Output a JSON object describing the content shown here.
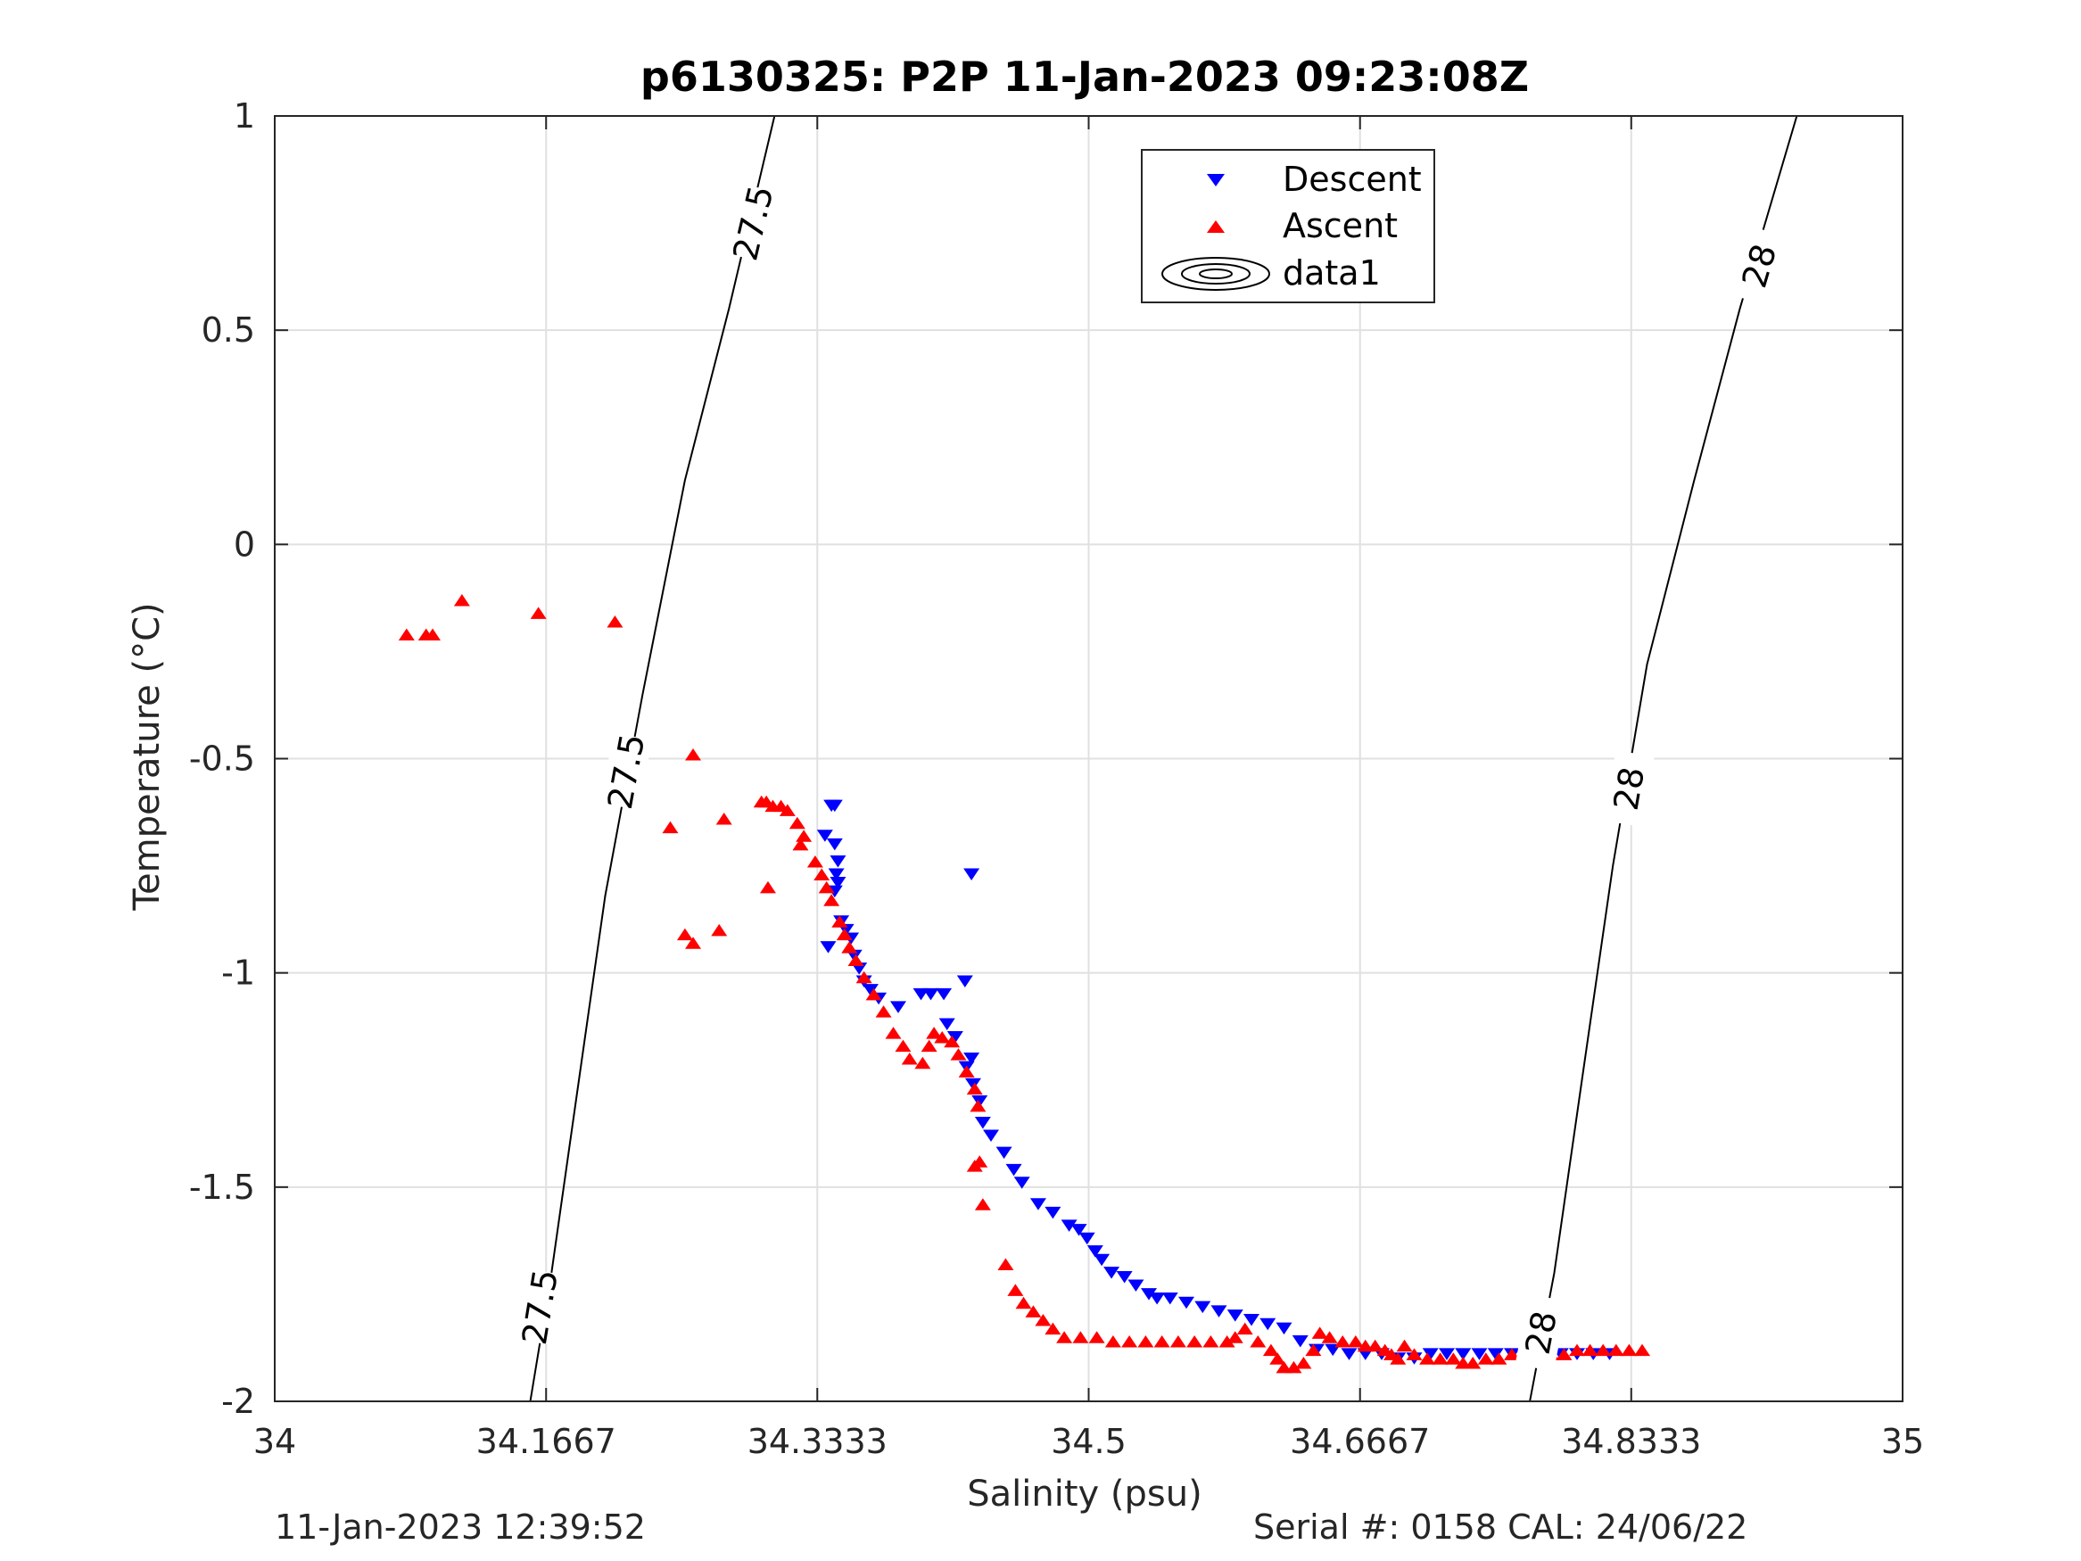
{
  "footer": {
    "timestamp": "11-Jan-2023 12:39:52",
    "serial_cal": "Serial #: 0158  CAL: 24/06/22"
  },
  "chart_data": {
    "type": "scatter",
    "title": "p6130325: P2P 11-Jan-2023 09:23:08Z",
    "xlabel": "Salinity (psu)",
    "ylabel": "Temperature (°C)",
    "xlim": [
      34,
      35
    ],
    "ylim": [
      -2,
      1
    ],
    "xticks": [
      34,
      34.1667,
      34.3333,
      34.5,
      34.6667,
      34.8333,
      35
    ],
    "xtick_labels": [
      "34",
      "34.1667",
      "34.3333",
      "34.5",
      "34.6667",
      "34.8333",
      "35"
    ],
    "yticks": [
      1,
      0.5,
      0,
      -0.5,
      -1,
      -1.5,
      -2
    ],
    "ytick_labels": [
      "1",
      "0.5",
      "0",
      "-0.5",
      "-1",
      "-1.5",
      "-2"
    ],
    "grid": true,
    "legend_position": "top-center",
    "series": [
      {
        "name": "Descent",
        "marker": "triangle-down",
        "color": "#0000ff",
        "points": [
          [
            34.342,
            -0.61
          ],
          [
            34.344,
            -0.61
          ],
          [
            34.338,
            -0.68
          ],
          [
            34.344,
            -0.7
          ],
          [
            34.346,
            -0.74
          ],
          [
            34.345,
            -0.77
          ],
          [
            34.346,
            -0.79
          ],
          [
            34.344,
            -0.81
          ],
          [
            34.348,
            -0.88
          ],
          [
            34.351,
            -0.9
          ],
          [
            34.354,
            -0.92
          ],
          [
            34.34,
            -0.94
          ],
          [
            34.356,
            -0.96
          ],
          [
            34.359,
            -0.99
          ],
          [
            34.362,
            -1.02
          ],
          [
            34.366,
            -1.04
          ],
          [
            34.371,
            -1.06
          ],
          [
            34.383,
            -1.08
          ],
          [
            34.397,
            -1.05
          ],
          [
            34.403,
            -1.05
          ],
          [
            34.411,
            -1.05
          ],
          [
            34.424,
            -1.02
          ],
          [
            34.428,
            -0.77
          ],
          [
            34.413,
            -1.12
          ],
          [
            34.418,
            -1.15
          ],
          [
            34.428,
            -1.2
          ],
          [
            34.425,
            -1.22
          ],
          [
            34.429,
            -1.26
          ],
          [
            34.433,
            -1.3
          ],
          [
            34.435,
            -1.35
          ],
          [
            34.44,
            -1.38
          ],
          [
            34.448,
            -1.42
          ],
          [
            34.454,
            -1.46
          ],
          [
            34.459,
            -1.49
          ],
          [
            34.469,
            -1.54
          ],
          [
            34.478,
            -1.56
          ],
          [
            34.488,
            -1.59
          ],
          [
            34.494,
            -1.6
          ],
          [
            34.499,
            -1.62
          ],
          [
            34.504,
            -1.65
          ],
          [
            34.508,
            -1.67
          ],
          [
            34.514,
            -1.7
          ],
          [
            34.522,
            -1.71
          ],
          [
            34.529,
            -1.73
          ],
          [
            34.537,
            -1.75
          ],
          [
            34.542,
            -1.76
          ],
          [
            34.55,
            -1.76
          ],
          [
            34.56,
            -1.77
          ],
          [
            34.57,
            -1.78
          ],
          [
            34.58,
            -1.79
          ],
          [
            34.59,
            -1.8
          ],
          [
            34.6,
            -1.81
          ],
          [
            34.61,
            -1.82
          ],
          [
            34.62,
            -1.83
          ],
          [
            34.63,
            -1.86
          ],
          [
            34.64,
            -1.88
          ],
          [
            34.65,
            -1.88
          ],
          [
            34.66,
            -1.89
          ],
          [
            34.67,
            -1.89
          ],
          [
            34.68,
            -1.89
          ],
          [
            34.69,
            -1.9
          ],
          [
            34.7,
            -1.9
          ],
          [
            34.71,
            -1.89
          ],
          [
            34.72,
            -1.89
          ],
          [
            34.73,
            -1.89
          ],
          [
            34.74,
            -1.89
          ],
          [
            34.75,
            -1.89
          ],
          [
            34.76,
            -1.89
          ],
          [
            34.77,
            -1.89
          ],
          [
            34.78,
            -1.89
          ],
          [
            34.79,
            -1.89
          ],
          [
            34.8,
            -1.89
          ],
          [
            34.81,
            -1.89
          ],
          [
            34.82,
            -1.89
          ]
        ]
      },
      {
        "name": "Ascent",
        "marker": "triangle-up",
        "color": "#ff0000",
        "points": [
          [
            34.081,
            -0.21
          ],
          [
            34.093,
            -0.21
          ],
          [
            34.097,
            -0.21
          ],
          [
            34.115,
            -0.13
          ],
          [
            34.162,
            -0.16
          ],
          [
            34.209,
            -0.18
          ],
          [
            34.257,
            -0.49
          ],
          [
            34.243,
            -0.66
          ],
          [
            34.276,
            -0.64
          ],
          [
            34.252,
            -0.91
          ],
          [
            34.257,
            -0.93
          ],
          [
            34.273,
            -0.9
          ],
          [
            34.303,
            -0.8
          ],
          [
            34.299,
            -0.6
          ],
          [
            34.302,
            -0.6
          ],
          [
            34.306,
            -0.61
          ],
          [
            34.311,
            -0.61
          ],
          [
            34.315,
            -0.62
          ],
          [
            34.321,
            -0.65
          ],
          [
            34.325,
            -0.68
          ],
          [
            34.323,
            -0.7
          ],
          [
            34.332,
            -0.74
          ],
          [
            34.336,
            -0.77
          ],
          [
            34.339,
            -0.8
          ],
          [
            34.342,
            -0.83
          ],
          [
            34.347,
            -0.88
          ],
          [
            34.35,
            -0.91
          ],
          [
            34.353,
            -0.94
          ],
          [
            34.357,
            -0.97
          ],
          [
            34.362,
            -1.01
          ],
          [
            34.368,
            -1.05
          ],
          [
            34.374,
            -1.09
          ],
          [
            34.38,
            -1.14
          ],
          [
            34.386,
            -1.17
          ],
          [
            34.39,
            -1.2
          ],
          [
            34.398,
            -1.21
          ],
          [
            34.402,
            -1.17
          ],
          [
            34.405,
            -1.14
          ],
          [
            34.41,
            -1.15
          ],
          [
            34.416,
            -1.16
          ],
          [
            34.42,
            -1.19
          ],
          [
            34.425,
            -1.23
          ],
          [
            34.43,
            -1.27
          ],
          [
            34.432,
            -1.31
          ],
          [
            34.43,
            -1.45
          ],
          [
            34.433,
            -1.44
          ],
          [
            34.435,
            -1.54
          ],
          [
            34.449,
            -1.68
          ],
          [
            34.455,
            -1.74
          ],
          [
            34.46,
            -1.77
          ],
          [
            34.466,
            -1.79
          ],
          [
            34.472,
            -1.81
          ],
          [
            34.478,
            -1.83
          ],
          [
            34.485,
            -1.85
          ],
          [
            34.495,
            -1.85
          ],
          [
            34.505,
            -1.85
          ],
          [
            34.515,
            -1.86
          ],
          [
            34.525,
            -1.86
          ],
          [
            34.535,
            -1.86
          ],
          [
            34.545,
            -1.86
          ],
          [
            34.555,
            -1.86
          ],
          [
            34.565,
            -1.86
          ],
          [
            34.575,
            -1.86
          ],
          [
            34.585,
            -1.86
          ],
          [
            34.59,
            -1.85
          ],
          [
            34.596,
            -1.83
          ],
          [
            34.604,
            -1.86
          ],
          [
            34.612,
            -1.88
          ],
          [
            34.616,
            -1.9
          ],
          [
            34.62,
            -1.92
          ],
          [
            34.626,
            -1.92
          ],
          [
            34.632,
            -1.91
          ],
          [
            34.638,
            -1.88
          ],
          [
            34.642,
            -1.84
          ],
          [
            34.648,
            -1.85
          ],
          [
            34.656,
            -1.86
          ],
          [
            34.664,
            -1.86
          ],
          [
            34.67,
            -1.87
          ],
          [
            34.676,
            -1.87
          ],
          [
            34.682,
            -1.88
          ],
          [
            34.686,
            -1.89
          ],
          [
            34.69,
            -1.9
          ],
          [
            34.694,
            -1.87
          ],
          [
            34.7,
            -1.89
          ],
          [
            34.708,
            -1.9
          ],
          [
            34.716,
            -1.9
          ],
          [
            34.724,
            -1.9
          ],
          [
            34.73,
            -1.91
          ],
          [
            34.736,
            -1.91
          ],
          [
            34.744,
            -1.9
          ],
          [
            34.752,
            -1.9
          ],
          [
            34.76,
            -1.89
          ],
          [
            34.768,
            -1.89
          ],
          [
            34.776,
            -1.89
          ],
          [
            34.784,
            -1.89
          ],
          [
            34.792,
            -1.89
          ],
          [
            34.8,
            -1.88
          ],
          [
            34.808,
            -1.88
          ],
          [
            34.816,
            -1.88
          ],
          [
            34.824,
            -1.88
          ],
          [
            34.832,
            -1.88
          ],
          [
            34.84,
            -1.88
          ]
        ]
      }
    ],
    "contours": [
      {
        "level": "27.5",
        "points": [
          [
            34.157,
            -2.0
          ],
          [
            34.17,
            -1.7
          ],
          [
            34.185,
            -1.3
          ],
          [
            34.203,
            -0.82
          ],
          [
            34.226,
            -0.35
          ],
          [
            34.252,
            0.15
          ],
          [
            34.279,
            0.55
          ],
          [
            34.307,
            1.0
          ]
        ],
        "labels": [
          [
            34.163,
            -1.78
          ],
          [
            34.216,
            -0.53
          ],
          [
            34.294,
            0.75
          ]
        ]
      },
      {
        "level": "28",
        "points": [
          [
            34.771,
            -2.0
          ],
          [
            34.786,
            -1.7
          ],
          [
            34.803,
            -1.25
          ],
          [
            34.822,
            -0.75
          ],
          [
            34.843,
            -0.28
          ],
          [
            34.872,
            0.15
          ],
          [
            34.9,
            0.55
          ],
          [
            34.935,
            1.0
          ]
        ],
        "labels": [
          [
            34.778,
            -1.84
          ],
          [
            34.832,
            -0.57
          ],
          [
            34.912,
            0.65
          ]
        ]
      }
    ],
    "legend_entries": [
      "Descent",
      "Ascent",
      "data1"
    ]
  }
}
